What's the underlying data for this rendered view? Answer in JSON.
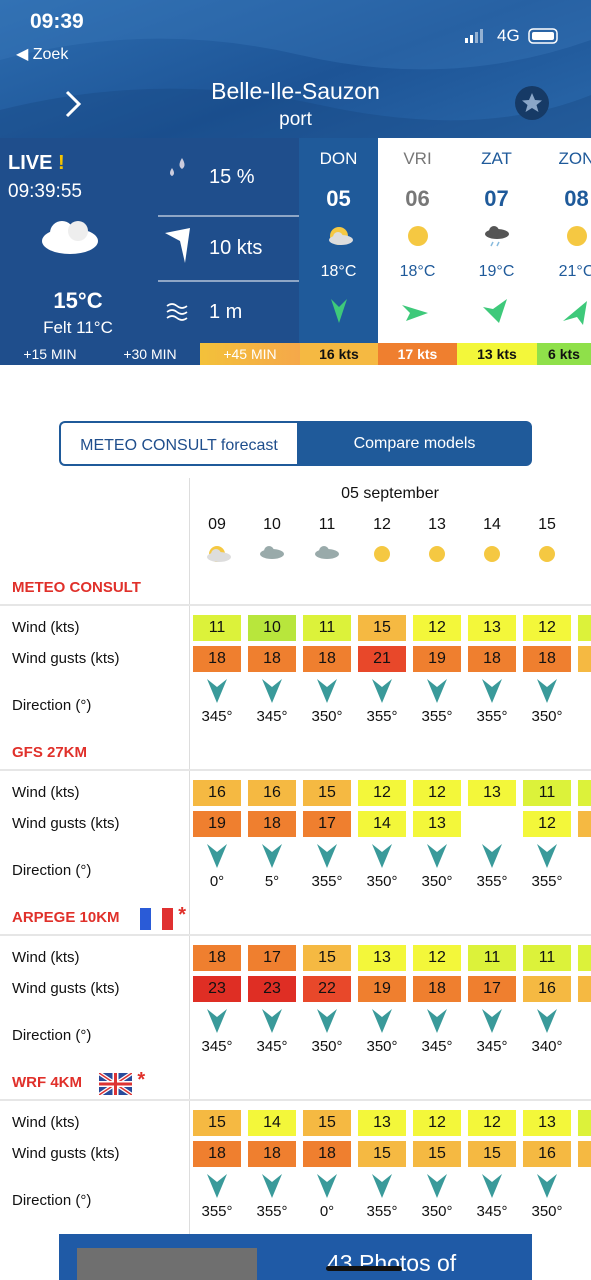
{
  "status": {
    "time": "09:39",
    "back": "◀ Zoek",
    "network": "4G"
  },
  "header": {
    "title": "Belle-Ile-Sauzon",
    "subtitle": "port"
  },
  "live": {
    "label": "LIVE",
    "alert": "!",
    "time": "09:39:55",
    "temperature": "15°C",
    "felt": "Felt 11°C",
    "rain": "15 %",
    "wind": "10 kts",
    "waves": "1 m"
  },
  "days": [
    {
      "name": "DON",
      "date": "05",
      "temperature": "18°C"
    },
    {
      "name": "VRI",
      "date": "06",
      "temperature": "18°C"
    },
    {
      "name": "ZAT",
      "date": "07",
      "temperature": "19°C"
    },
    {
      "name": "ZON",
      "date": "08",
      "temperature": "21°C"
    }
  ],
  "strip": [
    "+15 MIN",
    "+30 MIN",
    "+45 MIN",
    "16 kts",
    "17 kts",
    "13 kts",
    "6 kts"
  ],
  "tabs": [
    "METEO CONSULT forecast",
    "Compare models"
  ],
  "table": {
    "date": "05 september",
    "hours": [
      "09",
      "10",
      "11",
      "12",
      "13",
      "14",
      "15"
    ],
    "row_labels": [
      "Wind (kts)",
      "Wind gusts (kts)",
      "Direction (°)"
    ],
    "models": [
      {
        "name": "METEO CONSULT",
        "wind": [
          11,
          10,
          11,
          15,
          12,
          13,
          12
        ],
        "gusts": [
          18,
          18,
          18,
          21,
          19,
          18,
          18
        ],
        "direction": [
          "345°",
          "345°",
          "350°",
          "355°",
          "355°",
          "355°",
          "350°"
        ]
      },
      {
        "name": "GFS 27KM",
        "wind": [
          16,
          16,
          15,
          12,
          12,
          13,
          11
        ],
        "gusts": [
          19,
          18,
          17,
          14,
          13,
          null,
          12
        ],
        "direction": [
          "0°",
          "5°",
          "355°",
          "350°",
          "350°",
          "355°",
          "355°"
        ]
      },
      {
        "name": "ARPEGE 10KM",
        "note": "*",
        "wind": [
          18,
          17,
          15,
          13,
          12,
          11,
          11
        ],
        "gusts": [
          23,
          23,
          22,
          19,
          18,
          17,
          16
        ],
        "direction": [
          "345°",
          "345°",
          "350°",
          "350°",
          "345°",
          "345°",
          "340°"
        ]
      },
      {
        "name": "WRF 4KM",
        "note": "*",
        "wind": [
          15,
          14,
          15,
          13,
          12,
          12,
          13
        ],
        "gusts": [
          18,
          18,
          18,
          15,
          15,
          15,
          16
        ],
        "direction": [
          "355°",
          "355°",
          "0°",
          "355°",
          "350°",
          "345°",
          "350°"
        ]
      }
    ]
  },
  "banner": "43 Photos of"
}
